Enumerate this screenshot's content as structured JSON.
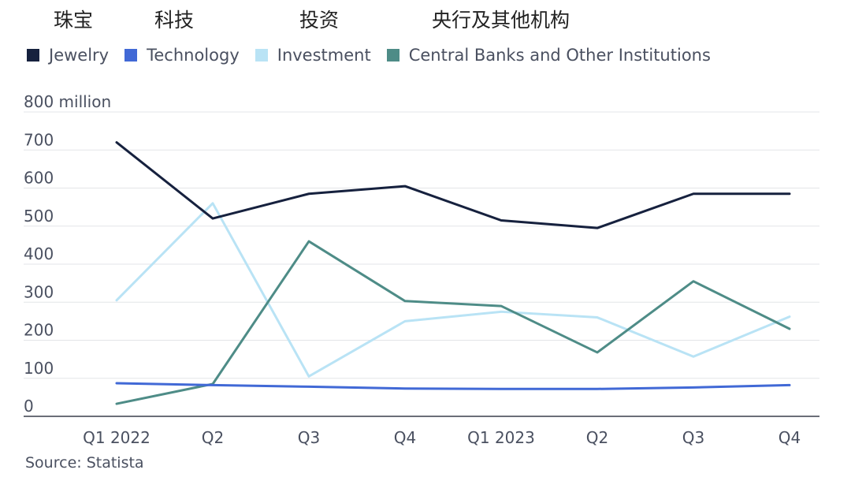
{
  "cn_labels": [
    "珠宝",
    "科技",
    "投资",
    "央行及其他机构"
  ],
  "source": "Source: Statista",
  "chart_data": {
    "type": "line",
    "categories": [
      "Q1 2022",
      "Q2",
      "Q3",
      "Q4",
      "Q1 2023",
      "Q2",
      "Q3",
      "Q4"
    ],
    "y_ticks": [
      "0",
      "100",
      "200",
      "300",
      "400",
      "500",
      "600",
      "700",
      "800 million"
    ],
    "ylim": [
      0,
      800
    ],
    "grid": true,
    "legend_position": "top-left",
    "series": [
      {
        "name": "Jewelry",
        "color": "#16213e",
        "values": [
          720,
          520,
          585,
          605,
          515,
          495,
          585,
          585
        ]
      },
      {
        "name": "Technology",
        "color": "#4169d6",
        "values": [
          87,
          82,
          78,
          73,
          72,
          72,
          76,
          82
        ]
      },
      {
        "name": "Investment",
        "color": "#b9e3f5",
        "values": [
          305,
          560,
          105,
          250,
          275,
          260,
          157,
          262
        ]
      },
      {
        "name": "Central Banks and Other Institutions",
        "color": "#4e8c87",
        "values": [
          33,
          85,
          460,
          303,
          290,
          168,
          355,
          230
        ]
      }
    ]
  }
}
